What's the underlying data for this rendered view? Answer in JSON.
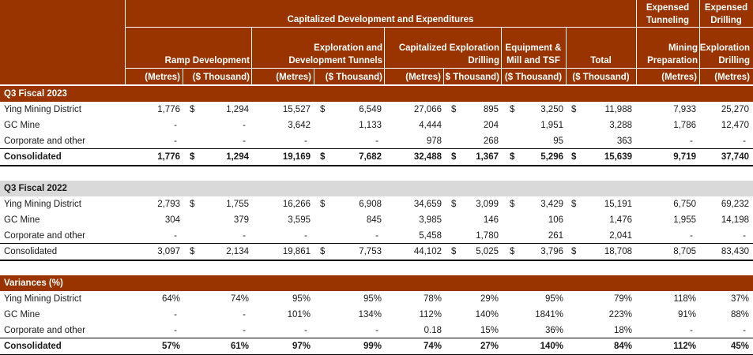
{
  "header": {
    "group_capitalized": "Capitalized Development and Expenditures",
    "group_expensed_tunneling": [
      "Expensed",
      "Tunneling"
    ],
    "group_expensed_drilling": [
      "Expensed",
      "Drilling"
    ],
    "columns": [
      {
        "title": [
          "",
          "Ramp Development"
        ],
        "units": [
          "(Metres)",
          "($ Thousand)"
        ]
      },
      {
        "title": [
          "Exploration and",
          "Development Tunnels"
        ],
        "units": [
          "(Metres)",
          "($ Thousand)"
        ]
      },
      {
        "title": [
          "Capitalized Exploration",
          "Drilling"
        ],
        "units": [
          "(Metres)",
          "$ Thousand)"
        ]
      },
      {
        "title": [
          "Equipment &",
          "Mill and TSF"
        ],
        "units": [
          "($ Thousand)"
        ]
      },
      {
        "title": [
          "",
          "Total"
        ],
        "units": [
          "($ Thousand)"
        ]
      },
      {
        "title": [
          "Mining",
          "Preparation"
        ],
        "units": [
          "(Metres)"
        ]
      },
      {
        "title": [
          "Exploration",
          "Drilling"
        ],
        "units": [
          "(Metres)"
        ]
      }
    ]
  },
  "sections": [
    {
      "title": "Q3 Fiscal 2023",
      "style": "brown",
      "rows": [
        {
          "label": "Ying Mining District",
          "bold": false,
          "dollars": true,
          "values": [
            "1,776",
            "1,294",
            "15,527",
            "6,549",
            "27,066",
            "895",
            "3,250",
            "11,988",
            "7,933",
            "25,270"
          ]
        },
        {
          "label": "GC Mine",
          "bold": false,
          "dollars": false,
          "values": [
            "-",
            "-",
            "3,642",
            "1,133",
            "4,444",
            "204",
            "1,951",
            "3,288",
            "1,786",
            "12,470"
          ]
        },
        {
          "label": "Corporate and other",
          "bold": false,
          "dollars": false,
          "values": [
            "-",
            "-",
            "-",
            "-",
            "978",
            "268",
            "95",
            "363",
            "-",
            "-"
          ]
        },
        {
          "label": "Consolidated",
          "bold": true,
          "dollars": true,
          "values": [
            "1,776",
            "1,294",
            "19,169",
            "7,682",
            "32,488",
            "1,367",
            "5,296",
            "15,639",
            "9,719",
            "37,740"
          ]
        }
      ]
    },
    {
      "title": "Q3 Fiscal 2022",
      "style": "grey",
      "rows": [
        {
          "label": "Ying Mining District",
          "bold": false,
          "dollars": true,
          "values": [
            "2,793",
            "1,755",
            "16,266",
            "6,908",
            "34,659",
            "3,099",
            "3,429",
            "15,191",
            "6,750",
            "69,232"
          ]
        },
        {
          "label": "GC Mine",
          "bold": false,
          "dollars": false,
          "values": [
            "304",
            "379",
            "3,595",
            "845",
            "3,985",
            "146",
            "106",
            "1,476",
            "1,955",
            "14,198"
          ]
        },
        {
          "label": "Corporate and other",
          "bold": false,
          "dollars": false,
          "values": [
            "-",
            "-",
            "-",
            "-",
            "5,458",
            "1,780",
            "261",
            "2,041",
            "-",
            "-"
          ]
        },
        {
          "label": "Consolidated",
          "bold": false,
          "dollars": true,
          "values": [
            "3,097",
            "2,134",
            "19,861",
            "7,753",
            "44,102",
            "5,025",
            "3,796",
            "18,708",
            "8,705",
            "83,430"
          ]
        }
      ]
    },
    {
      "title": "Variances (%)",
      "style": "brown",
      "rows": [
        {
          "label": "Ying Mining District",
          "bold": false,
          "dollars": false,
          "values": [
            "64%",
            "74%",
            "95%",
            "95%",
            "78%",
            "29%",
            "95%",
            "79%",
            "118%",
            "37%"
          ]
        },
        {
          "label": "GC Mine",
          "bold": false,
          "dollars": false,
          "values": [
            "-",
            "-",
            "101%",
            "134%",
            "112%",
            "140%",
            "1841%",
            "223%",
            "91%",
            "88%"
          ]
        },
        {
          "label": "Corporate and other",
          "bold": false,
          "dollars": false,
          "values": [
            "-",
            "-",
            "-",
            "-",
            "0.18",
            "15%",
            "36%",
            "18%",
            "-",
            "-"
          ]
        },
        {
          "label": "Consolidated",
          "bold": true,
          "dollars": false,
          "values": [
            "57%",
            "61%",
            "97%",
            "99%",
            "74%",
            "27%",
            "140%",
            "84%",
            "112%",
            "45%"
          ]
        }
      ]
    }
  ],
  "currency_symbol": "$"
}
